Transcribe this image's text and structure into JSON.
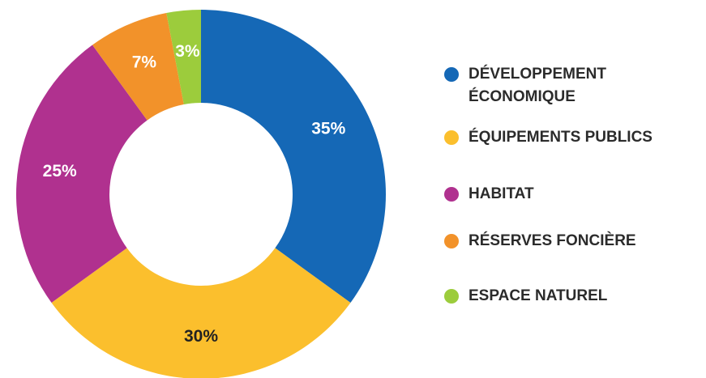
{
  "chart_data": {
    "type": "donut",
    "categories": [
      "DÉVELOPPEMENT ÉCONOMIQUE",
      "ÉQUIPEMENTS PUBLICS",
      "HABITAT",
      "RÉSERVES FONCIÈRE",
      "ESPACE NATUREL"
    ],
    "values": [
      35,
      30,
      25,
      7,
      3
    ],
    "value_labels": [
      "35%",
      "30%",
      "25%",
      "7%",
      "3%"
    ],
    "colors": [
      "#1568b6",
      "#fbbf2d",
      "#b0318f",
      "#f2922a",
      "#9ccc3c"
    ],
    "label_colors": [
      "#ffffff",
      "#222222",
      "#ffffff",
      "#ffffff",
      "#ffffff"
    ]
  }
}
